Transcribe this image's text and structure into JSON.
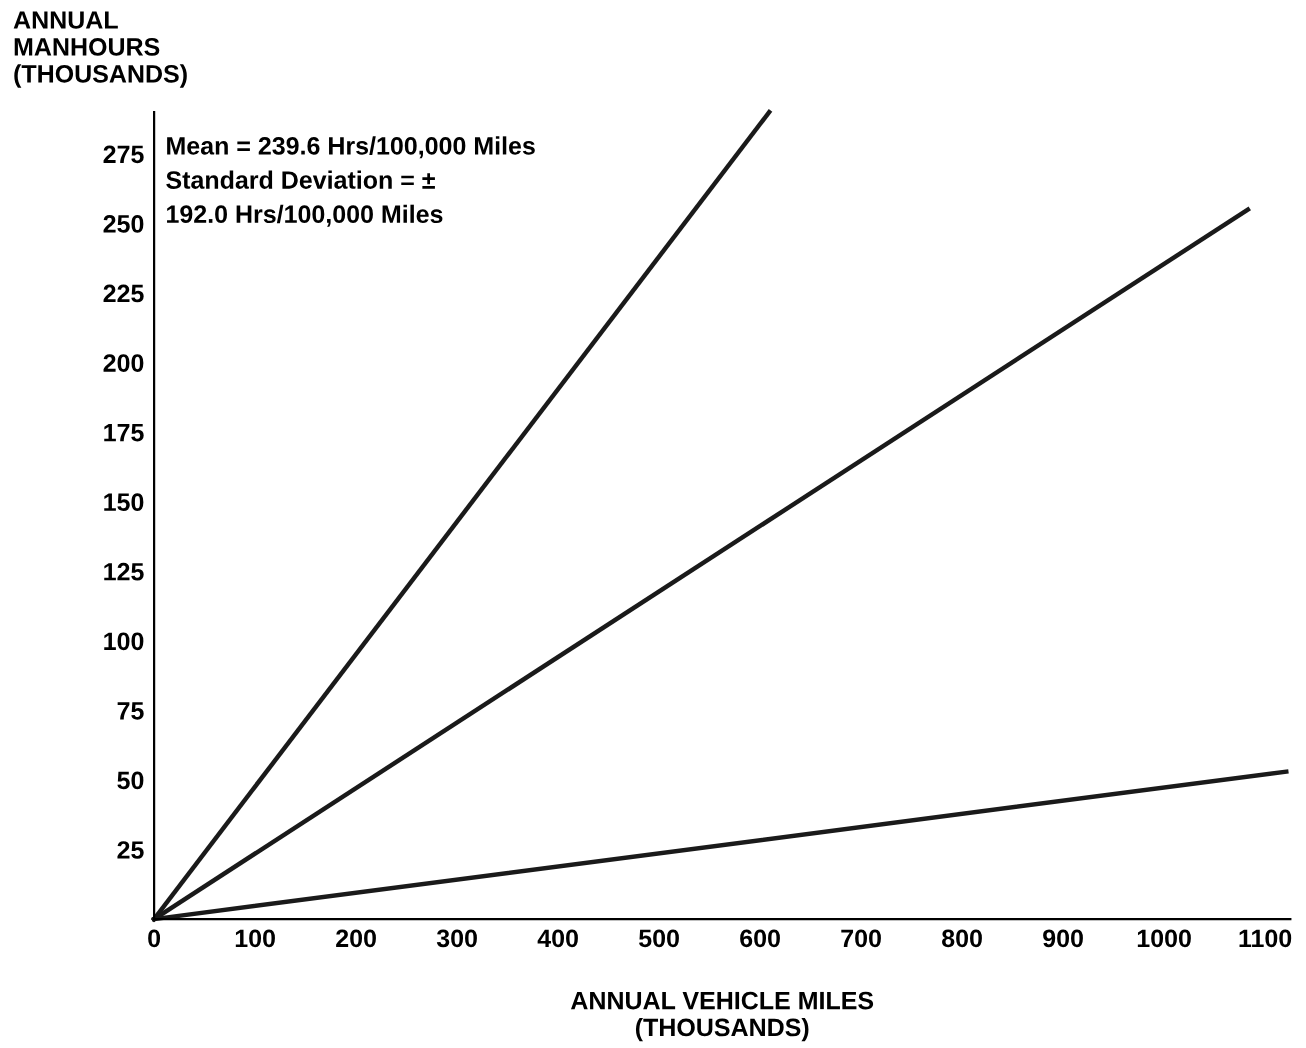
{
  "chart_data": {
    "type": "line",
    "xlabel": "ANNUAL VEHICLE MILES\n(THOUSANDS)",
    "ylabel": "ANNUAL\nMANHOURS\n(THOUSANDS)",
    "annotations": [
      "Mean = 239.6 Hrs/100,000 Miles\nStandard Deviation = ±\n192.0 Hrs/100,000 Miles"
    ],
    "series": [
      {
        "color": "#1a1a1a",
        "x": [
          0,
          609
        ],
        "values": [
          0,
          290
        ]
      },
      {
        "color": "#1a1a1a",
        "x": [
          0,
          1083
        ],
        "values": [
          0,
          255
        ]
      },
      {
        "color": "#1a1a1a",
        "x": [
          0,
          1121
        ],
        "values": [
          0,
          53
        ]
      }
    ],
    "xlim": [
      0,
      1125
    ],
    "ylim": [
      0,
      290
    ],
    "xticks": [
      0,
      100,
      200,
      300,
      400,
      500,
      600,
      700,
      800,
      900,
      1000,
      1100
    ],
    "yticks": [
      25,
      50,
      75,
      100,
      125,
      150,
      175,
      200,
      225,
      250,
      275
    ],
    "grid": false,
    "legend": false,
    "marker": "none",
    "line_style": "solid"
  }
}
